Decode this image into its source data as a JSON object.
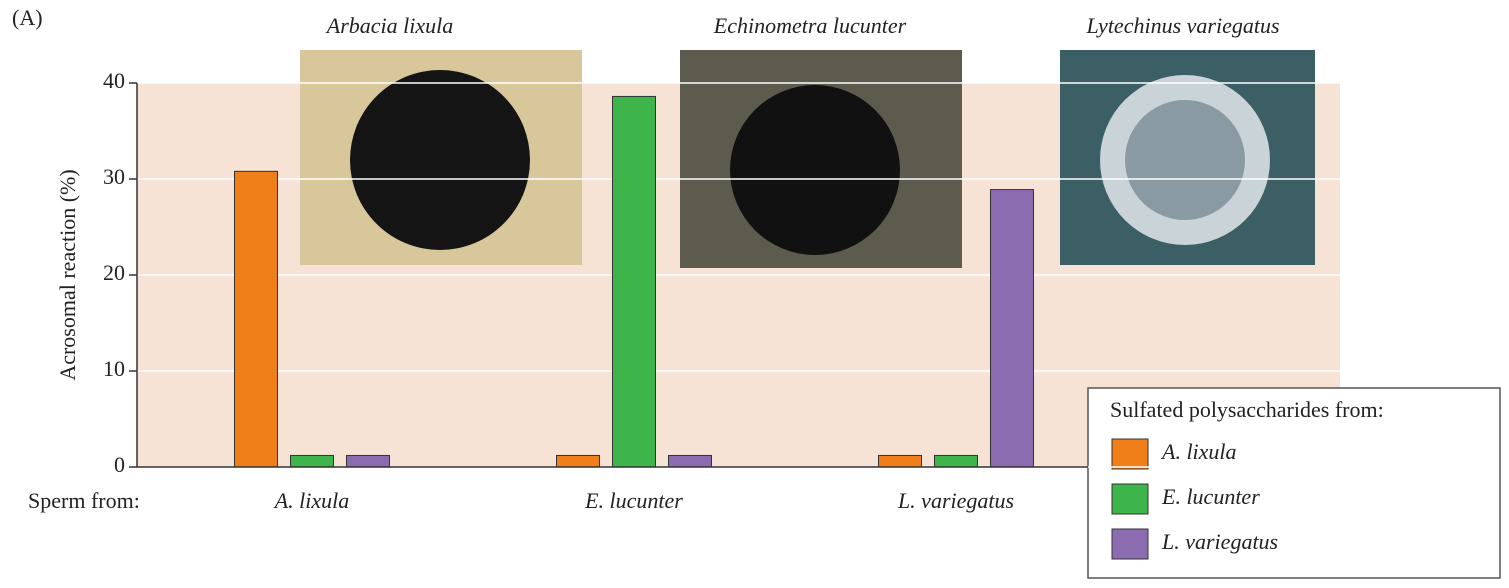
{
  "chart_data": {
    "type": "bar",
    "panel_label": "(A)",
    "ylabel": "Acrosomal reaction (%)",
    "xlabel": "Sperm from:",
    "categories": [
      "A. lixula",
      "E. lucunter",
      "L. variegatus"
    ],
    "series": [
      {
        "name": "A. lixula",
        "color": "#f07f1a",
        "values": [
          30.8,
          1.2,
          1.2
        ]
      },
      {
        "name": "E. lucunter",
        "color": "#3db54b",
        "values": [
          1.2,
          38.6,
          1.2
        ]
      },
      {
        "name": "L. variegatus",
        "color": "#8c6cb1",
        "values": [
          1.2,
          1.2,
          28.9
        ]
      }
    ],
    "legend_title": "Sulfated polysaccharides from:",
    "legend_position": "lower right",
    "photo_captions": [
      "Arbacia lixula",
      "Echinometra lucunter",
      "Lytechinus variegatus"
    ],
    "ylim": [
      0,
      40
    ],
    "yticks": [
      0,
      10,
      20,
      30,
      40
    ],
    "grid": true
  }
}
